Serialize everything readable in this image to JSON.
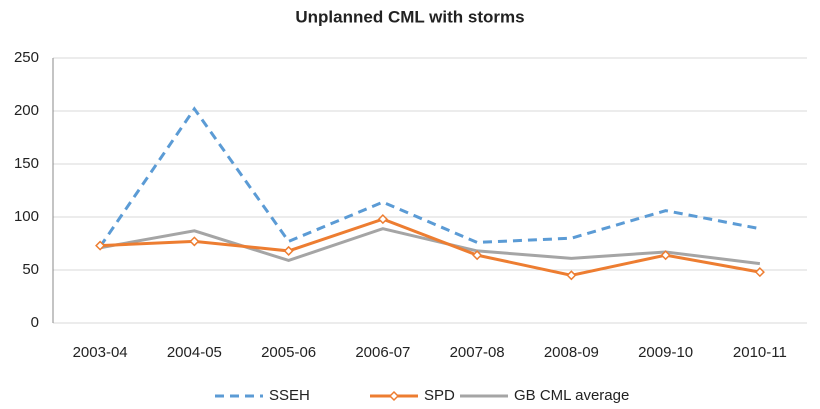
{
  "chart_data": {
    "type": "line",
    "title": "Unplanned CML with storms",
    "categories": [
      "2003-04",
      "2004-05",
      "2005-06",
      "2006-07",
      "2007-08",
      "2008-09",
      "2009-10",
      "2010-11"
    ],
    "series": [
      {
        "name": "SSEH",
        "color": "#5b9bd5",
        "dashed": true,
        "values": [
          72,
          202,
          77,
          114,
          76,
          80,
          106,
          89
        ]
      },
      {
        "name": "SPD",
        "color": "#ed7d31",
        "marker": "diamond",
        "values": [
          73,
          77,
          68,
          98,
          64,
          45,
          64,
          48
        ]
      },
      {
        "name": "GB CML average",
        "color": "#a5a5a5",
        "values": [
          71,
          87,
          59,
          89,
          68,
          61,
          67,
          56
        ]
      }
    ],
    "ylim": [
      0,
      250
    ],
    "yticks": [
      0,
      50,
      100,
      150,
      200,
      250
    ],
    "grid": true,
    "legend": "bottom"
  }
}
